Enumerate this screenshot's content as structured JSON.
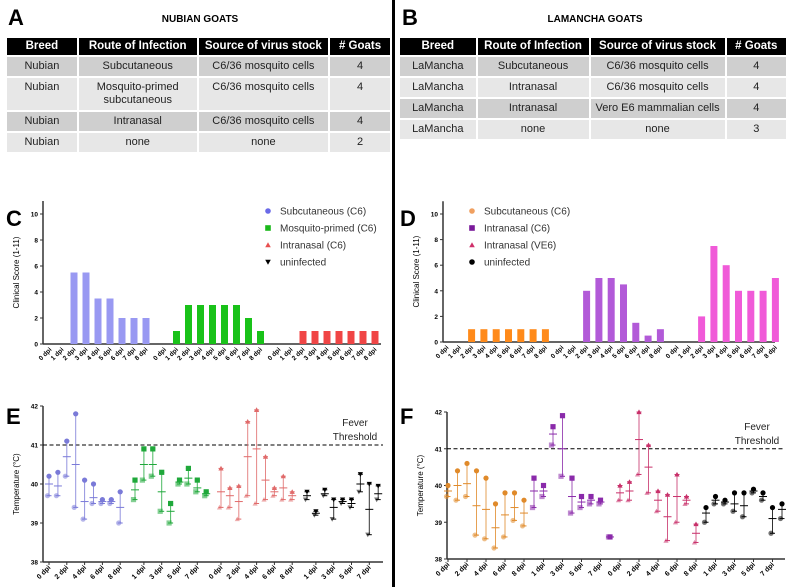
{
  "panels": {
    "A": {
      "letter": "A",
      "title": "NUBIAN GOATS"
    },
    "B": {
      "letter": "B",
      "title": "LAMANCHA GOATS"
    },
    "C": {
      "letter": "C"
    },
    "D": {
      "letter": "D"
    },
    "E": {
      "letter": "E"
    },
    "F": {
      "letter": "F"
    }
  },
  "tables": [
    {
      "headers": [
        "Breed",
        "Route of Infection",
        "Source of virus stock",
        "# Goats"
      ],
      "rows": [
        [
          "Nubian",
          "Subcutaneous",
          "C6/36 mosquito cells",
          "4"
        ],
        [
          "Nubian",
          "Mosquito-primed subcutaneous",
          "C6/36 mosquito cells",
          "4"
        ],
        [
          "Nubian",
          "Intranasal",
          "C6/36 mosquito cells",
          "4"
        ],
        [
          "Nubian",
          "none",
          "none",
          "2"
        ]
      ]
    },
    {
      "headers": [
        "Breed",
        "Route of Infection",
        "Source of virus stock",
        "# Goats"
      ],
      "rows": [
        [
          "LaMancha",
          "Subcutaneous",
          "C6/36 mosquito cells",
          "4"
        ],
        [
          "LaMancha",
          "Intranasal",
          "C6/36 mosquito cells",
          "4"
        ],
        [
          "LaMancha",
          "Intranasal",
          "Vero E6 mammalian cells",
          "4"
        ],
        [
          "LaMancha",
          "none",
          "none",
          "3"
        ]
      ]
    }
  ],
  "chart_data": [
    {
      "panel": "C",
      "type": "bar",
      "ylabel": "Clinical  Score  (1-11)",
      "ylim": [
        0,
        11
      ],
      "yticks": [
        0,
        2,
        4,
        6,
        8,
        10
      ],
      "categories": [
        "0 dpi",
        "1 dpi",
        "2 dpi",
        "3 dpi",
        "4 dpi",
        "5 dpi",
        "6 dpi",
        "7 dpi",
        "8 dpi"
      ],
      "legend_position": "top-right",
      "legend": [
        {
          "name": "Subcutaneous (C6)",
          "marker": "circle",
          "color": "#6a6ae8"
        },
        {
          "name": "Mosquito-primed (C6)",
          "marker": "square",
          "color": "#1bb81b"
        },
        {
          "name": "Intranasal (C6)",
          "marker": "triangle-up",
          "color": "#e85050"
        },
        {
          "name": "uninfected",
          "marker": "triangle-down",
          "color": "#000000"
        }
      ],
      "series": [
        {
          "color": "#9999f2",
          "values": [
            0,
            0,
            5.5,
            5.5,
            3.5,
            3.5,
            2,
            2,
            2
          ]
        },
        {
          "color": "#19c219",
          "values": [
            0,
            1,
            3,
            3,
            3,
            3,
            3,
            2,
            1
          ]
        },
        {
          "color": "#f04545",
          "values": [
            0,
            0,
            1,
            1,
            1,
            1,
            1,
            1,
            1
          ]
        }
      ]
    },
    {
      "panel": "D",
      "type": "bar",
      "ylabel": "Clinical  Score  (1-11)",
      "ylim": [
        0,
        11
      ],
      "yticks": [
        0,
        2,
        4,
        6,
        8,
        10
      ],
      "categories": [
        "0 dpi",
        "1 dpi",
        "2 dpi",
        "3 dpi",
        "4 dpi",
        "5 dpi",
        "6 dpi",
        "7 dpi",
        "8 dpi"
      ],
      "legend_position": "top-left",
      "legend": [
        {
          "name": "Subcutaneous (C6)",
          "marker": "circle",
          "color": "#f0a060"
        },
        {
          "name": "Intranasal (C6)",
          "marker": "square",
          "color": "#7a1a9a"
        },
        {
          "name": "Intranasal (VE6)",
          "marker": "triangle-up",
          "color": "#d0306a"
        },
        {
          "name": "uninfected",
          "marker": "circle",
          "color": "#000000"
        }
      ],
      "series": [
        {
          "color": "#ff8a1a",
          "values": [
            0,
            0,
            1,
            1,
            1,
            1,
            1,
            1,
            1
          ]
        },
        {
          "color": "#b25ad8",
          "values": [
            0,
            0,
            4,
            5,
            5,
            4.5,
            1.5,
            0.5,
            1
          ]
        },
        {
          "color": "#f05ad8",
          "values": [
            0,
            0,
            2,
            7.5,
            6,
            4,
            4,
            4,
            5
          ]
        }
      ]
    },
    {
      "panel": "E",
      "type": "scatter",
      "ylabel": "Temperature  (°C)",
      "ylim": [
        38,
        42
      ],
      "yticks": [
        38,
        39,
        40,
        41,
        42
      ],
      "threshold": {
        "value": 41,
        "label_line1": "Fever",
        "label_line2": "Threshold"
      },
      "groups": [
        {
          "marker": "circle",
          "color": "#7a7ad8",
          "ticks": [
            "0 dpi",
            "",
            "2 dpi",
            "",
            "4 dpi",
            "",
            "6 dpi",
            "",
            "8 dpi"
          ],
          "mean": [
            40.0,
            39.95,
            40.7,
            40.5,
            39.55,
            39.65,
            39.55,
            39.55,
            39.4
          ],
          "min": [
            39.7,
            39.7,
            40.2,
            39.4,
            39.1,
            39.5,
            39.5,
            39.5,
            39.0
          ],
          "max": [
            40.2,
            40.3,
            41.1,
            41.8,
            40.1,
            40.0,
            39.6,
            39.6,
            39.8
          ]
        },
        {
          "marker": "square",
          "color": "#1fa83a",
          "ticks": [
            "",
            "1 dpi",
            "",
            "3 dpi",
            "",
            "5 dpi",
            "",
            "7 dpi",
            ""
          ],
          "mean": [
            39.85,
            40.5,
            40.5,
            39.8,
            39.3,
            40.05,
            40.15,
            39.9,
            39.75
          ],
          "min": [
            39.6,
            40.1,
            40.2,
            39.3,
            39.0,
            40.0,
            40.0,
            39.8,
            39.7
          ],
          "max": [
            40.1,
            40.9,
            40.9,
            40.3,
            39.5,
            40.1,
            40.4,
            40.1,
            39.8
          ]
        },
        {
          "marker": "triangle-up",
          "color": "#e06a6a",
          "ticks": [
            "0 dpi",
            "",
            "2 dpi",
            "",
            "4 dpi",
            "",
            "6 dpi",
            "",
            "8 dpi"
          ],
          "mean": [
            39.8,
            39.7,
            39.55,
            40.7,
            40.9,
            40.1,
            39.8,
            39.9,
            39.7
          ],
          "min": [
            39.4,
            39.4,
            39.1,
            39.7,
            39.5,
            39.6,
            39.7,
            39.6,
            39.6
          ],
          "max": [
            40.4,
            39.9,
            39.95,
            41.6,
            41.9,
            40.7,
            39.9,
            40.2,
            39.8
          ]
        },
        {
          "marker": "triangle-down",
          "color": "#000000",
          "ticks": [
            "",
            "1 dpi",
            "",
            "3 dpi",
            "",
            "5 dpi",
            "",
            "7 dpi",
            ""
          ],
          "mean": [
            39.7,
            39.25,
            39.75,
            39.4,
            39.55,
            39.5,
            40.0,
            39.35,
            39.75
          ],
          "min": [
            39.6,
            39.2,
            39.7,
            39.1,
            39.5,
            39.4,
            39.8,
            38.7,
            39.6
          ],
          "max": [
            39.8,
            39.3,
            39.85,
            39.6,
            39.6,
            39.6,
            40.25,
            40.0,
            39.95
          ]
        }
      ]
    },
    {
      "panel": "F",
      "type": "scatter",
      "ylabel": "Temperature  (°C)",
      "ylim": [
        38,
        42
      ],
      "yticks": [
        38,
        39,
        40,
        41,
        42
      ],
      "threshold": {
        "value": 41,
        "label_line1": "Fever",
        "label_line2": "Threshold"
      },
      "groups": [
        {
          "marker": "circle",
          "color": "#e08a2a",
          "ticks": [
            "0 dpi",
            "",
            "2 dpi",
            "",
            "4 dpi",
            "",
            "6 dpi",
            "",
            "8 dpi"
          ],
          "mean": [
            39.85,
            40.0,
            40.05,
            39.45,
            39.35,
            38.85,
            39.2,
            39.4,
            39.25
          ],
          "min": [
            39.7,
            39.6,
            39.7,
            38.65,
            38.55,
            38.3,
            38.6,
            39.05,
            38.9
          ],
          "max": [
            40.0,
            40.4,
            40.6,
            40.4,
            40.2,
            39.5,
            39.8,
            39.8,
            39.6
          ]
        },
        {
          "marker": "square",
          "color": "#8a2aaa",
          "ticks": [
            "",
            "1 dpi",
            "",
            "3 dpi",
            "",
            "5 dpi",
            "",
            "7 dpi",
            ""
          ],
          "mean": [
            39.85,
            39.85,
            41.4,
            41.0,
            39.7,
            39.55,
            39.6,
            39.55,
            38.6
          ],
          "min": [
            39.4,
            39.7,
            41.1,
            40.25,
            39.25,
            39.4,
            39.5,
            39.5,
            38.6
          ],
          "max": [
            40.2,
            40.0,
            41.6,
            41.9,
            40.2,
            39.7,
            39.7,
            39.6,
            38.6
          ]
        },
        {
          "marker": "triangle-up",
          "color": "#c8306a",
          "ticks": [
            "0 dpi",
            "",
            "2 dpi",
            "",
            "4 dpi",
            "",
            "6 dpi",
            "",
            "8 dpi"
          ],
          "mean": [
            39.8,
            39.85,
            41.25,
            40.5,
            39.6,
            39.15,
            39.7,
            39.6,
            38.7
          ],
          "min": [
            39.6,
            39.6,
            40.3,
            39.8,
            39.3,
            38.5,
            39.0,
            39.5,
            38.45
          ],
          "max": [
            40.0,
            40.1,
            42.0,
            41.1,
            39.85,
            39.75,
            40.3,
            39.7,
            38.95
          ]
        },
        {
          "marker": "circle",
          "color": "#000000",
          "ticks": [
            "",
            "1 dpi",
            "",
            "3 dpi",
            "",
            "5 dpi",
            "",
            "7 dpi",
            ""
          ],
          "mean": [
            39.25,
            39.6,
            39.55,
            39.5,
            39.45,
            39.85,
            39.7,
            39.1,
            39.35
          ],
          "min": [
            39.0,
            39.5,
            39.5,
            39.3,
            39.15,
            39.8,
            39.6,
            38.7,
            39.1
          ],
          "max": [
            39.4,
            39.7,
            39.6,
            39.8,
            39.8,
            39.9,
            39.8,
            39.4,
            39.5
          ]
        }
      ]
    }
  ]
}
